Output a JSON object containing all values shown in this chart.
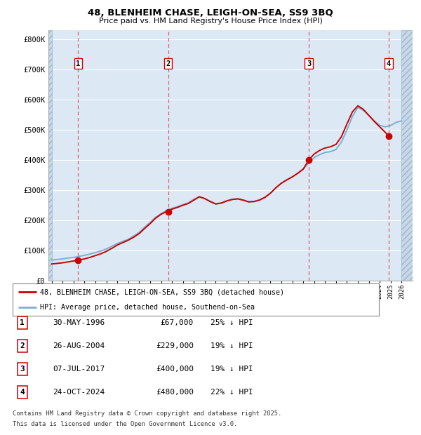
{
  "title_line1": "48, BLENHEIM CHASE, LEIGH-ON-SEA, SS9 3BQ",
  "title_line2": "Price paid vs. HM Land Registry's House Price Index (HPI)",
  "background_color": "#dce9f5",
  "hatch_color": "#c0d4e8",
  "grid_color": "#ffffff",
  "red_line_color": "#cc0000",
  "blue_line_color": "#7ab0d4",
  "dashed_line_color": "#ee6666",
  "y_ticks": [
    0,
    100000,
    200000,
    300000,
    400000,
    500000,
    600000,
    700000,
    800000
  ],
  "y_tick_labels": [
    "£0",
    "£100K",
    "£200K",
    "£300K",
    "£400K",
    "£500K",
    "£600K",
    "£700K",
    "£800K"
  ],
  "x_start": 1994,
  "x_end": 2027,
  "xlim_left": 1993.7,
  "xlim_right": 2027.0,
  "ylim_top": 830000,
  "sale_dates": [
    1996.41,
    2004.65,
    2017.51,
    2024.81
  ],
  "sale_prices": [
    67000,
    229000,
    400000,
    480000
  ],
  "sale_labels": [
    "1",
    "2",
    "3",
    "4"
  ],
  "legend_red_label": "48, BLENHEIM CHASE, LEIGH-ON-SEA, SS9 3BQ (detached house)",
  "legend_blue_label": "HPI: Average price, detached house, Southend-on-Sea",
  "table_rows": [
    [
      "1",
      "30-MAY-1996",
      "£67,000",
      "25% ↓ HPI"
    ],
    [
      "2",
      "26-AUG-2004",
      "£229,000",
      "19% ↓ HPI"
    ],
    [
      "3",
      "07-JUL-2017",
      "£400,000",
      "19% ↓ HPI"
    ],
    [
      "4",
      "24-OCT-2024",
      "£480,000",
      "22% ↓ HPI"
    ]
  ],
  "footnote_line1": "Contains HM Land Registry data © Crown copyright and database right 2025.",
  "footnote_line2": "This data is licensed under the Open Government Licence v3.0.",
  "hpi_x": [
    1994.0,
    1994.5,
    1995.0,
    1995.5,
    1996.0,
    1996.5,
    1997.0,
    1997.5,
    1998.0,
    1998.5,
    1999.0,
    1999.5,
    2000.0,
    2000.5,
    2001.0,
    2001.5,
    2002.0,
    2002.5,
    2003.0,
    2003.5,
    2004.0,
    2004.5,
    2005.0,
    2005.5,
    2006.0,
    2006.5,
    2007.0,
    2007.5,
    2008.0,
    2008.5,
    2009.0,
    2009.5,
    2010.0,
    2010.5,
    2011.0,
    2011.5,
    2012.0,
    2012.5,
    2013.0,
    2013.5,
    2014.0,
    2014.5,
    2015.0,
    2015.5,
    2016.0,
    2016.5,
    2017.0,
    2017.5,
    2018.0,
    2018.5,
    2019.0,
    2019.5,
    2020.0,
    2020.5,
    2021.0,
    2021.5,
    2022.0,
    2022.5,
    2023.0,
    2023.5,
    2024.0,
    2024.5,
    2025.0,
    2025.5,
    2026.0
  ],
  "hpi_y": [
    68000,
    70000,
    72000,
    75000,
    77000,
    80000,
    84000,
    88000,
    93000,
    98000,
    105000,
    114000,
    123000,
    130000,
    137000,
    148000,
    160000,
    177000,
    193000,
    210000,
    222000,
    232000,
    240000,
    245000,
    252000,
    258000,
    270000,
    278000,
    272000,
    263000,
    255000,
    258000,
    265000,
    270000,
    272000,
    268000,
    262000,
    263000,
    268000,
    277000,
    290000,
    308000,
    323000,
    335000,
    344000,
    356000,
    370000,
    390000,
    408000,
    418000,
    425000,
    428000,
    435000,
    460000,
    500000,
    545000,
    575000,
    565000,
    548000,
    530000,
    515000,
    510000,
    515000,
    525000,
    530000
  ],
  "prop_x": [
    1994.0,
    1994.5,
    1995.0,
    1995.5,
    1996.0,
    1996.41,
    1996.5,
    1997.0,
    1997.5,
    1998.0,
    1998.5,
    1999.0,
    1999.5,
    2000.0,
    2000.5,
    2001.0,
    2001.5,
    2002.0,
    2002.5,
    2003.0,
    2003.5,
    2004.0,
    2004.5,
    2004.65,
    2005.0,
    2005.5,
    2006.0,
    2006.5,
    2007.0,
    2007.5,
    2008.0,
    2008.5,
    2009.0,
    2009.5,
    2010.0,
    2010.5,
    2011.0,
    2011.5,
    2012.0,
    2012.5,
    2013.0,
    2013.5,
    2014.0,
    2014.5,
    2015.0,
    2015.5,
    2016.0,
    2016.5,
    2017.0,
    2017.51,
    2017.5,
    2018.0,
    2018.5,
    2019.0,
    2019.5,
    2020.0,
    2020.5,
    2021.0,
    2021.5,
    2022.0,
    2022.5,
    2023.0,
    2023.5,
    2024.0,
    2024.5,
    2024.81,
    2025.0
  ],
  "prop_y": [
    55000,
    57000,
    59000,
    62000,
    65000,
    67000,
    68000,
    72000,
    77000,
    83000,
    89000,
    97000,
    107000,
    118000,
    126000,
    134000,
    144000,
    156000,
    173000,
    189000,
    207000,
    220000,
    229000,
    229000,
    237000,
    243000,
    250000,
    256000,
    267000,
    278000,
    272000,
    262000,
    254000,
    257000,
    264000,
    269000,
    271000,
    267000,
    261000,
    262000,
    267000,
    276000,
    290000,
    308000,
    323000,
    334000,
    344000,
    356000,
    370000,
    400000,
    400000,
    420000,
    432000,
    440000,
    444000,
    452000,
    478000,
    520000,
    560000,
    580000,
    568000,
    548000,
    528000,
    510000,
    492000,
    480000,
    475000
  ]
}
